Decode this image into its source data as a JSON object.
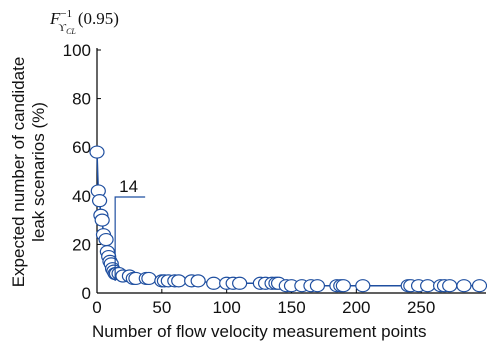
{
  "chart_data": {
    "type": "line",
    "top_label": {
      "base": "F",
      "sup": "−1",
      "sub": "ϒ",
      "subsub": "CL",
      "arg": "(0.95)"
    },
    "x_label": "Number of flow velocity measurement points",
    "y_label": [
      "Expected number of candidate",
      "leak scenarios (%)"
    ],
    "x": [
      0,
      1,
      2,
      3,
      4,
      5,
      7,
      8,
      9,
      10,
      11,
      12,
      13,
      14,
      15,
      17,
      20,
      25,
      28,
      30,
      38,
      40,
      50,
      52,
      55,
      60,
      63,
      73,
      78,
      90,
      100,
      105,
      110,
      126,
      130,
      135,
      138,
      140,
      146,
      150,
      158,
      165,
      170,
      185,
      188,
      190,
      205,
      240,
      242,
      248,
      255,
      265,
      268,
      272,
      283,
      295
    ],
    "series": [
      {
        "color": "#1f4fa0",
        "values": [
          58,
          42,
          38,
          32,
          30,
          24,
          22,
          17,
          15,
          13,
          12,
          10,
          9,
          8,
          8,
          8,
          7,
          7,
          6,
          6,
          6,
          6,
          5,
          5,
          5,
          5,
          5,
          5,
          5,
          4,
          4,
          4,
          4,
          4,
          4,
          4,
          4,
          4,
          3,
          3,
          3,
          3,
          3,
          3,
          3,
          3,
          3,
          3,
          3,
          3,
          3,
          3,
          3,
          3,
          3,
          3
        ]
      }
    ],
    "annotation": {
      "label": "14",
      "x": 14
    },
    "xlim": [
      0,
      300
    ],
    "ylim": [
      0,
      100
    ],
    "xticks": [
      0,
      50,
      100,
      150,
      200,
      250
    ],
    "yticks": [
      0,
      20,
      40,
      60,
      80,
      100
    ]
  }
}
